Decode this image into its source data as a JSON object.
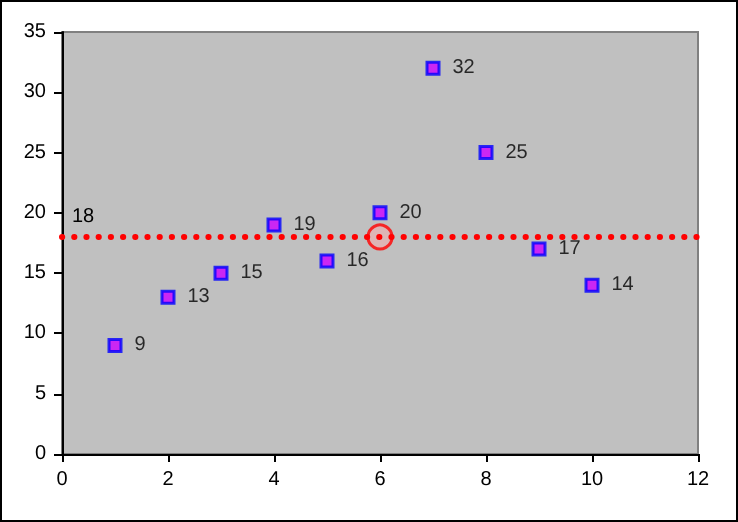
{
  "chart_data": {
    "type": "scatter",
    "xlim": [
      0,
      12
    ],
    "xticks": [
      0,
      2,
      4,
      6,
      8,
      10,
      12
    ],
    "ylim": [
      0,
      35
    ],
    "yticks": [
      0,
      5,
      10,
      15,
      20,
      25,
      30,
      35
    ],
    "grid": false,
    "series": [
      {
        "type": "scatter",
        "color": "#cc00ff",
        "marker": "square",
        "x": [
          1,
          2,
          3,
          4,
          5,
          6,
          7,
          8,
          9,
          10
        ],
        "values": [
          9,
          13,
          15,
          19,
          16,
          20,
          32,
          25,
          17,
          14
        ],
        "value_labels": [
          "9",
          "13",
          "15",
          "19",
          "16",
          "20",
          "32",
          "25",
          "17",
          "14"
        ]
      },
      {
        "type": "scatter",
        "color": "#ff0000",
        "marker": "circle",
        "x": [
          6
        ],
        "values": [
          18
        ]
      }
    ],
    "ref_lines": [
      {
        "axis": "y",
        "value": 18,
        "label": "18",
        "color": "#ff0000",
        "line_style": "dotted"
      }
    ]
  }
}
